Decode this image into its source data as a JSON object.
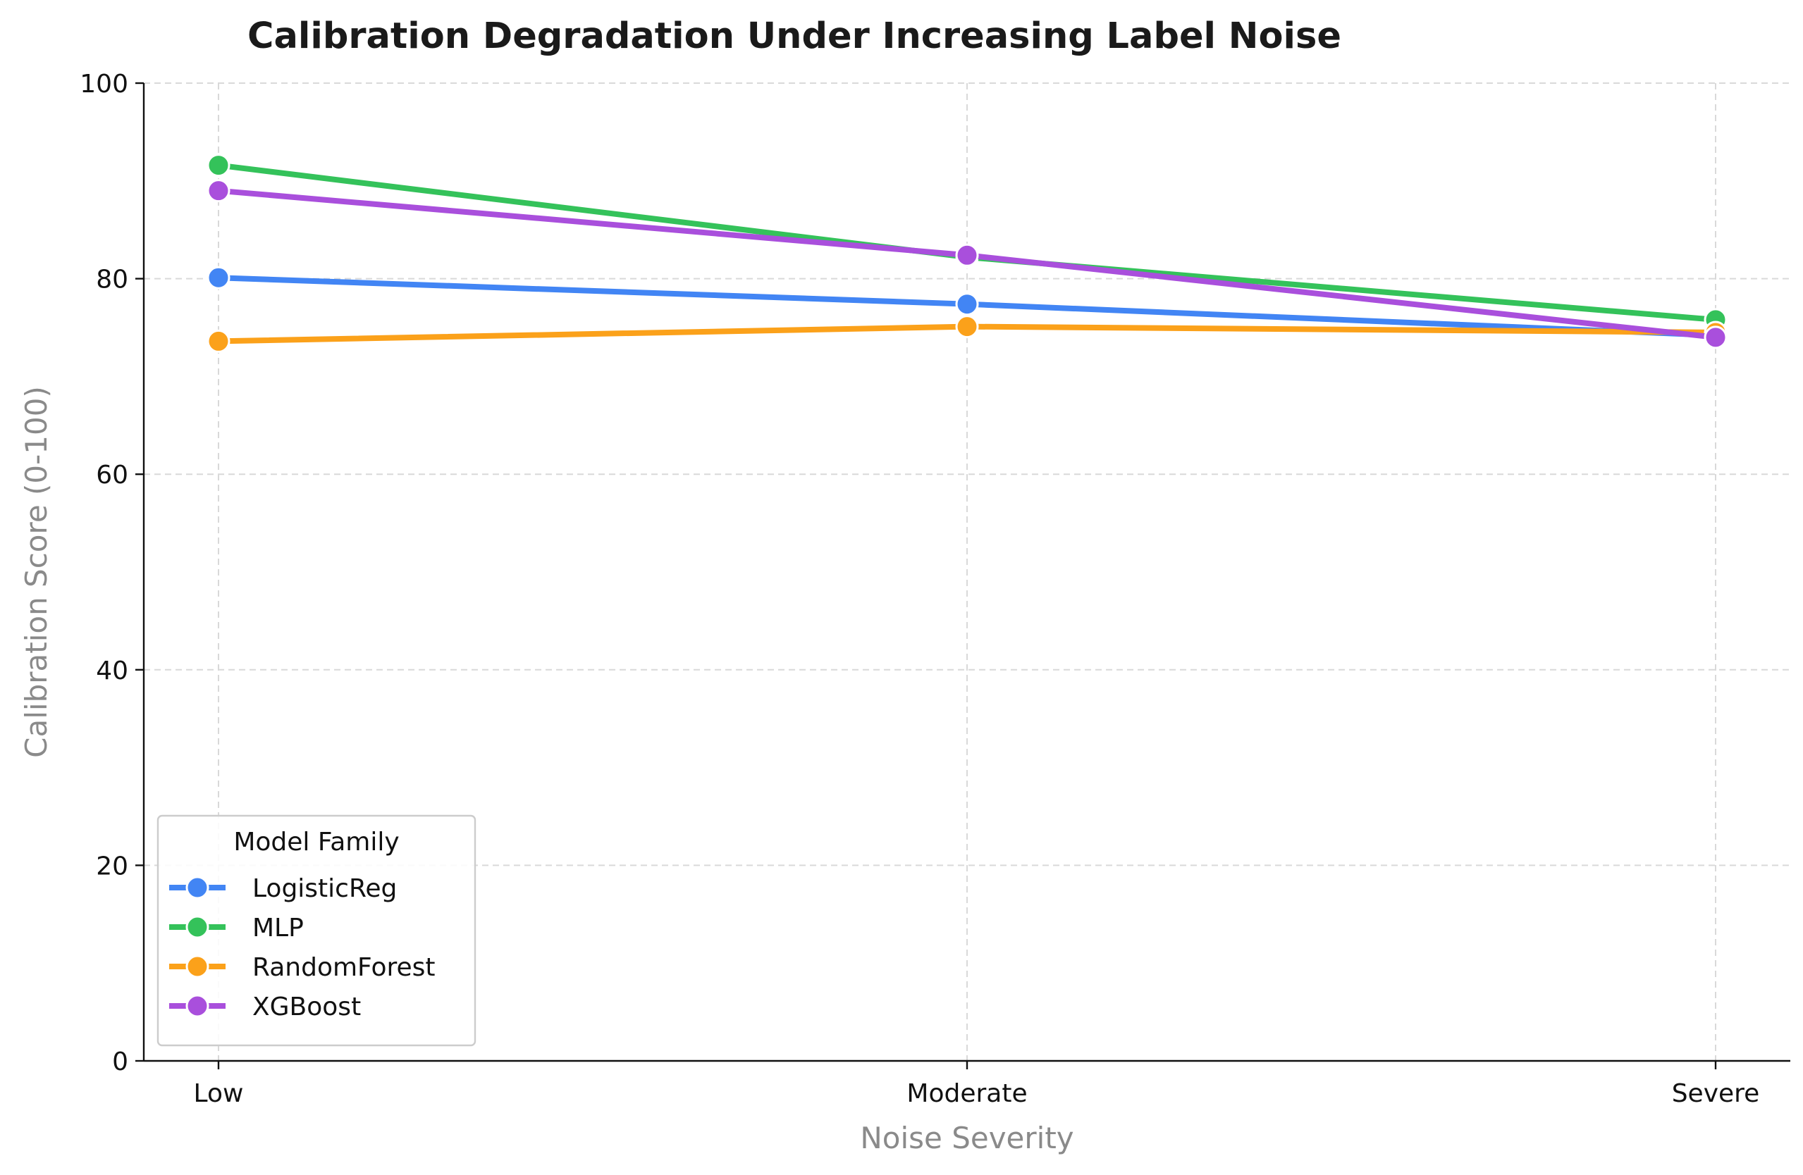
{
  "chart_data": {
    "type": "line",
    "title": "Calibration Degradation Under Increasing Label Noise",
    "xlabel": "Noise Severity",
    "ylabel": "Calibration Score (0-100)",
    "categories": [
      "Low",
      "Moderate",
      "Severe"
    ],
    "ylim": [
      0,
      100
    ],
    "yticks": [
      0,
      20,
      40,
      60,
      80,
      100
    ],
    "grid": true,
    "legend": {
      "title": "Model Family",
      "placement": "lower-left"
    },
    "series": [
      {
        "name": "LogisticReg",
        "color": "#4285f4",
        "values": [
          80.1,
          77.4,
          74.2
        ]
      },
      {
        "name": "MLP",
        "color": "#34c25a",
        "values": [
          91.6,
          82.2,
          75.8
        ]
      },
      {
        "name": "RandomForest",
        "color": "#fba11a",
        "values": [
          73.6,
          75.1,
          74.5
        ]
      },
      {
        "name": "XGBoost",
        "color": "#a94fdc",
        "values": [
          89.0,
          82.4,
          74.0
        ]
      }
    ]
  }
}
